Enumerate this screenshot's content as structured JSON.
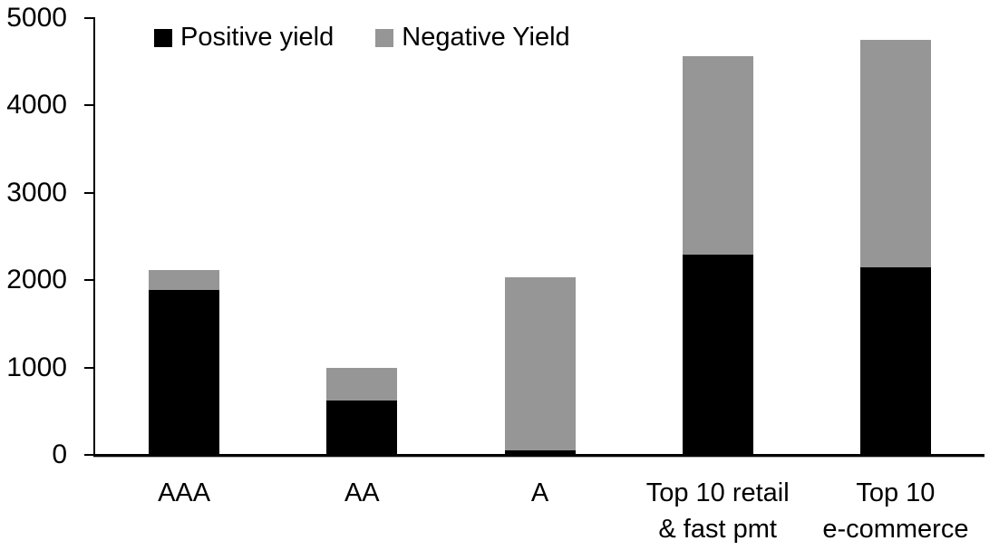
{
  "chart_data": {
    "type": "bar",
    "stacked": true,
    "title": "",
    "xlabel": "",
    "ylabel": "",
    "grid": false,
    "legend_position": "top-left",
    "categories": [
      "AAA",
      "AA",
      "A",
      "Top 10 retail\n& fast pmt",
      "Top 10\ne-commerce"
    ],
    "series": [
      {
        "name": "Positive yield",
        "color": "#000000",
        "values": [
          1890,
          620,
          50,
          2290,
          2150
        ]
      },
      {
        "name": "Negative Yield",
        "color": "#969696",
        "values": [
          230,
          380,
          1980,
          2270,
          2600
        ]
      }
    ],
    "totals": [
      2120,
      1000,
      2030,
      4560,
      4750
    ],
    "ylim": [
      0,
      5000
    ],
    "yticks": [
      0,
      1000,
      2000,
      3000,
      4000,
      5000
    ]
  },
  "colors": {
    "positive": "#000000",
    "negative": "#969696",
    "axis": "#000000",
    "background": "#ffffff"
  }
}
